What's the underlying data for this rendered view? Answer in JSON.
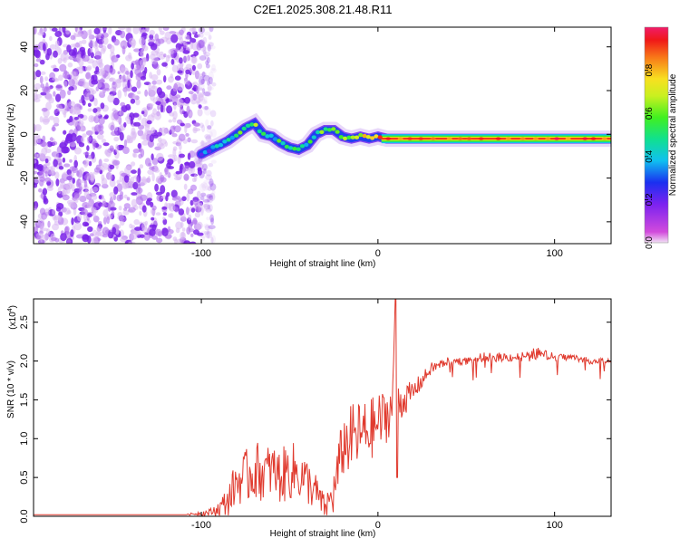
{
  "title": "C2E1.2025.308.21.48.R11",
  "colors": {
    "signal": "#e03a2e",
    "scatter": "#7a2be0",
    "axis": "#000000",
    "background": "#ffffff"
  },
  "chart_data": [
    {
      "type": "heatmap",
      "title": "C2E1.2025.308.21.48.R11",
      "xlabel": "Height of straight line (km)",
      "ylabel": "Frequency (Hz)",
      "xlim": [
        -195,
        132
      ],
      "ylim": [
        -50,
        49
      ],
      "xticks": [
        -100,
        0,
        100
      ],
      "xtick_labels": [
        "-100",
        "0",
        "100"
      ],
      "yticks": [
        -40,
        -20,
        0,
        20,
        40
      ],
      "ytick_labels": [
        "-40",
        "-20",
        "0",
        "20",
        "40"
      ],
      "noise_region_x": [
        -195,
        -100
      ],
      "ridge": {
        "name": "frequency ridge",
        "x": [
          -100,
          -95,
          -90,
          -85,
          -80,
          -75,
          -70,
          -65,
          -60,
          -55,
          -50,
          -45,
          -40,
          -35,
          -30,
          -25,
          -20,
          -15,
          -10,
          -5,
          0,
          5,
          20,
          40,
          60,
          80,
          100,
          120,
          132
        ],
        "y": [
          -9,
          -7,
          -5,
          -3,
          0,
          3,
          5,
          0,
          -1,
          -4,
          -6,
          -7,
          -5,
          0,
          2,
          2,
          -1,
          -2,
          -1,
          -2,
          -1,
          -2,
          -2,
          -2,
          -2,
          -2,
          -2,
          -2,
          -2
        ],
        "amplitude": [
          0.2,
          0.3,
          0.35,
          0.45,
          0.5,
          0.55,
          0.6,
          0.5,
          0.45,
          0.5,
          0.5,
          0.45,
          0.5,
          0.55,
          0.6,
          0.55,
          0.6,
          0.65,
          0.7,
          0.75,
          0.85,
          0.9,
          0.9,
          0.9,
          0.9,
          0.92,
          0.92,
          0.9,
          0.9
        ]
      },
      "colorbar": {
        "label": "Normalized spectral amplitude",
        "range": [
          0,
          1
        ],
        "ticks": [
          0.0,
          0.2,
          0.4,
          0.6,
          0.8
        ],
        "tick_labels": [
          "0.0",
          "0.2",
          "0.4",
          "0.6",
          "0.8"
        ]
      }
    },
    {
      "type": "line",
      "xlabel": "Height of straight line (km)",
      "ylabel": "SNR (10 * v/v)",
      "scale_label": "(x10",
      "scale_exponent": "4",
      "xlim": [
        -195,
        132
      ],
      "ylim": [
        0,
        2.8
      ],
      "xticks": [
        -100,
        0,
        100
      ],
      "xtick_labels": [
        "-100",
        "0",
        "100"
      ],
      "yticks": [
        0.0,
        0.5,
        1.0,
        1.5,
        2.0,
        2.5
      ],
      "ytick_labels": [
        "0.0",
        "0.5",
        "1.0",
        "1.5",
        "2.0",
        "2.5"
      ],
      "series": [
        {
          "name": "SNR",
          "x": [
            -195,
            -110,
            -95,
            -90,
            -85,
            -80,
            -75,
            -70,
            -65,
            -60,
            -55,
            -50,
            -45,
            -40,
            -35,
            -30,
            -25,
            -20,
            -15,
            -10,
            -5,
            0,
            5,
            8,
            10,
            12,
            15,
            20,
            25,
            30,
            40,
            50,
            60,
            70,
            80,
            90,
            100,
            110,
            120,
            132
          ],
          "y": [
            0.02,
            0.02,
            0.05,
            0.1,
            0.2,
            0.45,
            0.5,
            0.6,
            0.55,
            0.6,
            0.5,
            0.6,
            0.55,
            0.45,
            0.3,
            0.1,
            0.3,
            0.9,
            1.0,
            1.05,
            1.1,
            1.2,
            1.3,
            1.4,
            2.8,
            1.45,
            1.5,
            1.6,
            1.75,
            1.9,
            2.0,
            2.0,
            2.05,
            2.05,
            2.05,
            2.1,
            2.05,
            2.05,
            2.0,
            2.0
          ],
          "spread": [
            0,
            0,
            0.05,
            0.1,
            0.2,
            0.3,
            0.35,
            0.4,
            0.35,
            0.35,
            0.35,
            0.4,
            0.35,
            0.3,
            0.25,
            0.15,
            0.3,
            0.4,
            0.45,
            0.45,
            0.4,
            0.4,
            0.35,
            0.3,
            0,
            0.25,
            0.2,
            0.15,
            0.1,
            0.08,
            0.05,
            0.05,
            0.06,
            0.06,
            0.06,
            0.08,
            0.05,
            0.04,
            0.04,
            0.04
          ]
        }
      ]
    }
  ]
}
